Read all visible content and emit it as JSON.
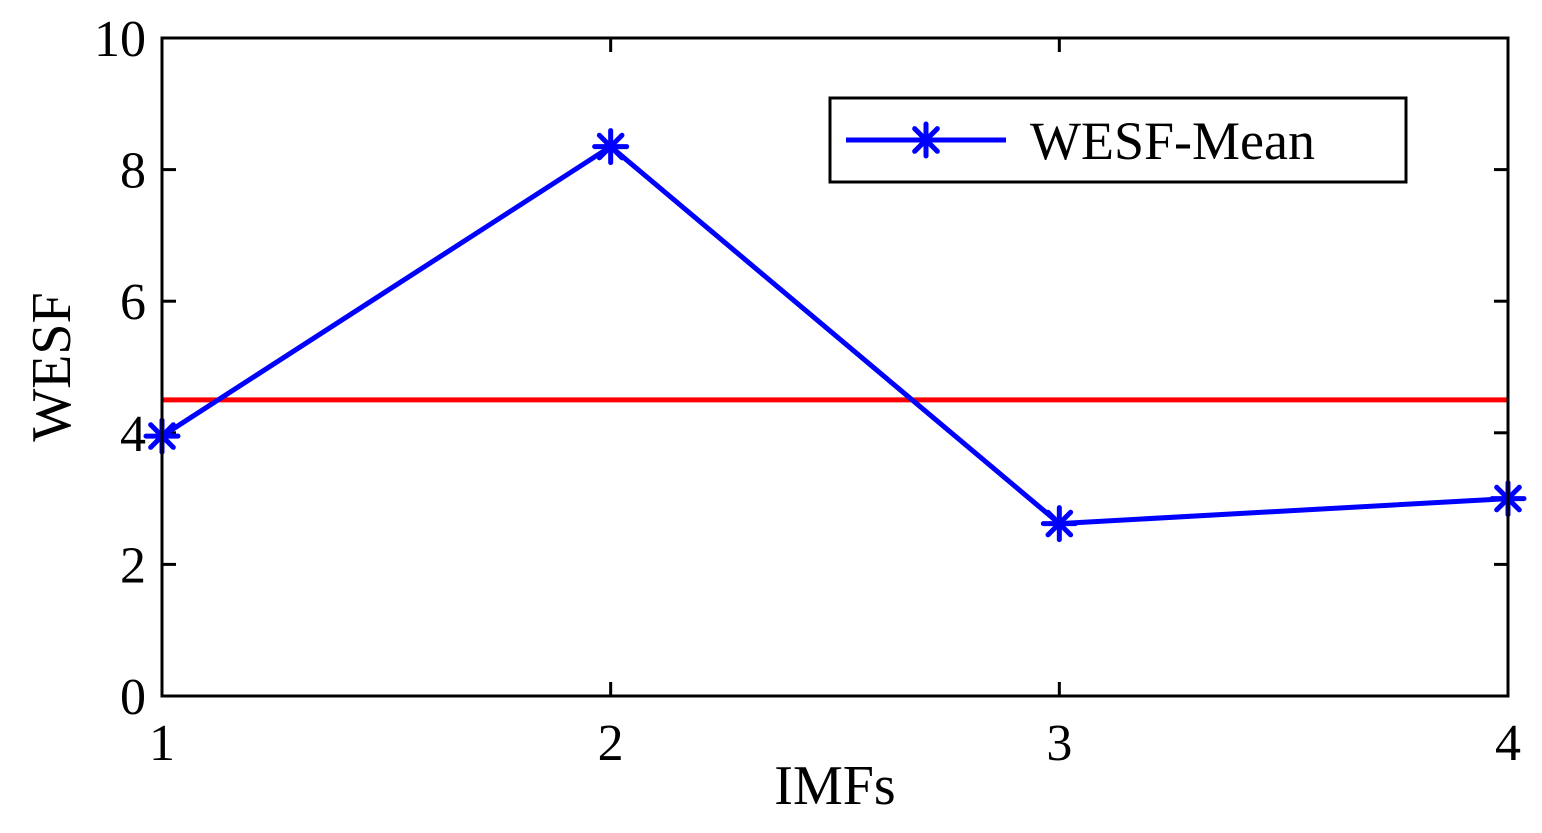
{
  "chart_data": {
    "type": "line",
    "title": "",
    "xlabel": "IMFs",
    "ylabel": "WESF",
    "x": [
      1,
      2,
      3,
      4
    ],
    "xticks": [
      "1",
      "2",
      "3",
      "4"
    ],
    "yticks": [
      "0",
      "2",
      "4",
      "6",
      "8",
      "10"
    ],
    "xlim": [
      1,
      4
    ],
    "ylim": [
      0,
      10
    ],
    "grid": false,
    "legend_position": "top-right",
    "series": [
      {
        "name": "WESF-Mean",
        "values": [
          3.95,
          8.35,
          2.62,
          3.0
        ],
        "color": "#0000ff",
        "marker": "asterisk"
      }
    ],
    "reference_lines": [
      {
        "y": 4.5,
        "color": "#ff0000"
      }
    ]
  }
}
